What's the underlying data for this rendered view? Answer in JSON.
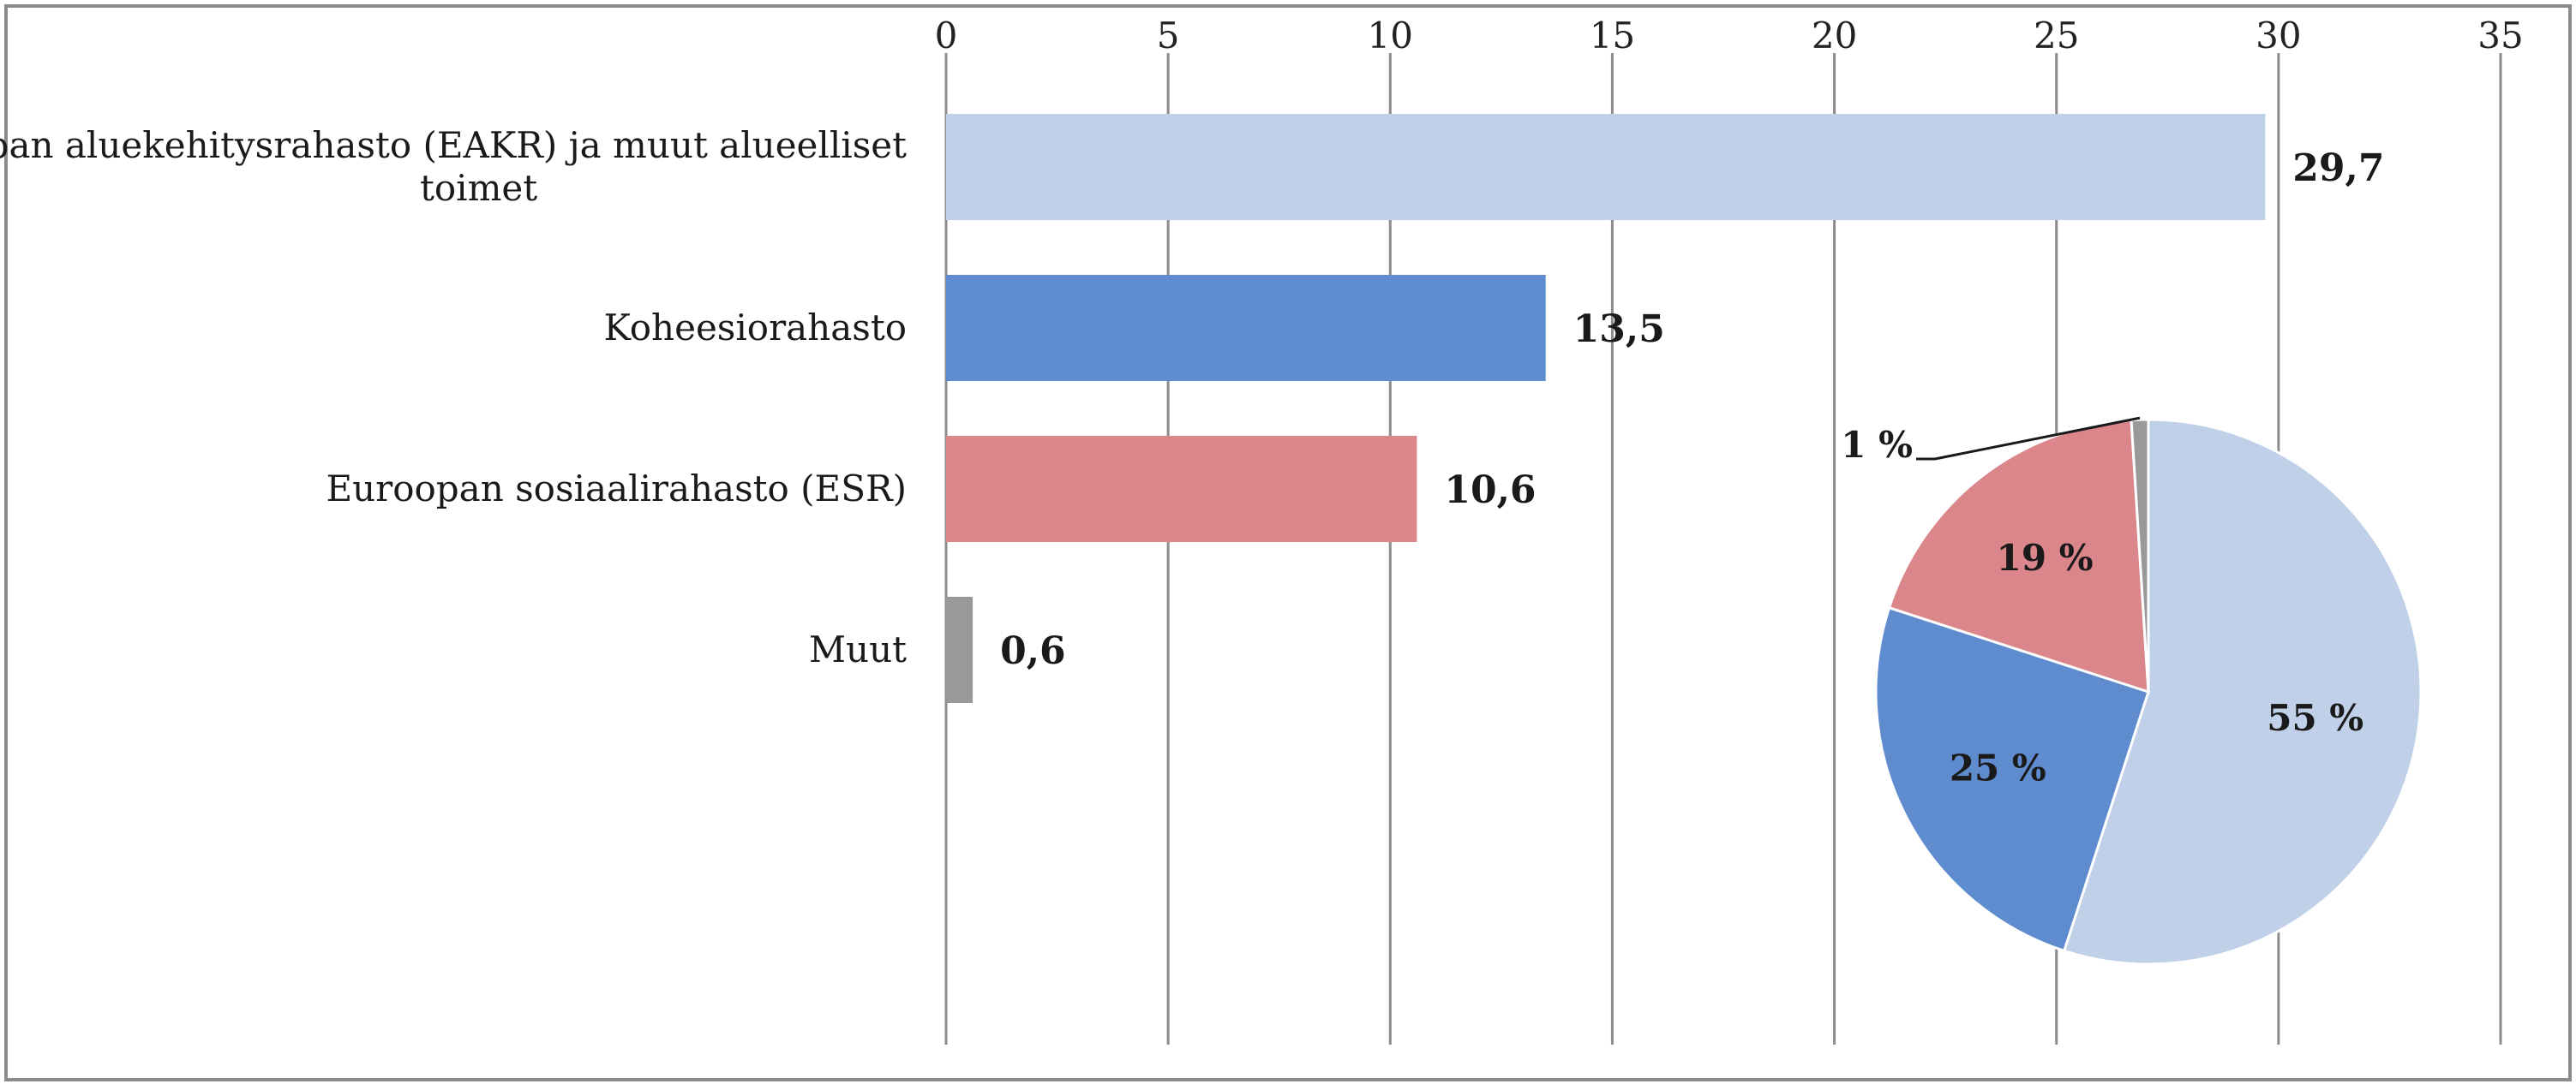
{
  "chart_data": [
    {
      "type": "bar",
      "orientation": "horizontal",
      "categories": [
        "Euroopan aluekehitysrahasto (EAKR) ja muut alueelliset toimet",
        "Koheesiorahasto",
        "Euroopan sosiaalirahasto (ESR)",
        "Muut"
      ],
      "category_label_lines": [
        [
          "Euroopan aluekehitysrahasto (EAKR) ja muut alueelliset",
          "toimet"
        ],
        [
          "Koheesiorahasto"
        ],
        [
          "Euroopan sosiaalirahasto (ESR)"
        ],
        [
          "Muut"
        ]
      ],
      "values": [
        29.7,
        13.5,
        10.6,
        0.6
      ],
      "value_labels": [
        "29,7",
        "13,5",
        "10,6",
        "0,6"
      ],
      "colors": [
        "#bfd0e8",
        "#5f8ccf",
        "#da868b",
        "#999999"
      ],
      "xlim": [
        0,
        35
      ],
      "ticks": [
        0,
        5,
        10,
        15,
        20,
        25,
        30,
        35
      ],
      "tick_labels": [
        "0",
        "5",
        "10",
        "15",
        "20",
        "25",
        "30",
        "35"
      ],
      "axis_position": "top",
      "grid": true
    },
    {
      "type": "pie",
      "values": [
        55,
        25,
        19,
        1
      ],
      "labels": [
        "55 %",
        "25 %",
        "19 %",
        "1 %"
      ],
      "colors": [
        "#bfd0e8",
        "#5f8ccf",
        "#da868b",
        "#999999"
      ],
      "start": "top",
      "direction": "clockwise"
    }
  ]
}
